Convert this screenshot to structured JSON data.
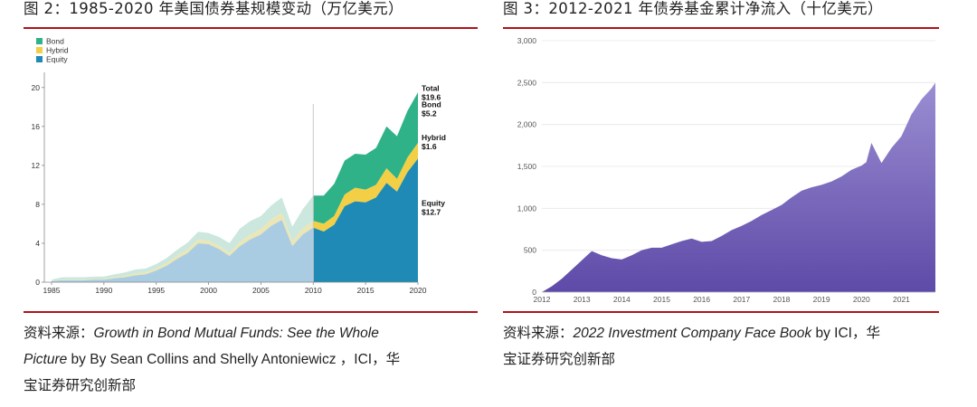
{
  "left": {
    "figure_title": "图 2：1985-2020 年美国债券基规模变动（万亿美元）",
    "source_lines": [
      {
        "prefix": "资料来源：",
        "italic": "Growth in Bond Mutual Funds: See the Whole",
        "rest": ""
      },
      {
        "prefix": "",
        "italic": "Picture",
        "rest": " by By Sean Collins and Shelly Antoniewicz ，ICI，华"
      },
      {
        "prefix": "宝证券研究创新部",
        "italic": "",
        "rest": ""
      }
    ],
    "colors": {
      "bond": "#2fb288",
      "hybrid": "#f2cf45",
      "equity": "#1f8ab6",
      "bond_pre": "#cce7dd",
      "hybrid_pre": "#ece6b4",
      "equity_pre": "#a9cce3"
    },
    "end_labels": [
      {
        "name": "Total",
        "value": "$19.6"
      },
      {
        "name": "Bond",
        "value": "$5.2"
      },
      {
        "name": "Hybrid",
        "value": "$1.6"
      },
      {
        "name": "Equity",
        "value": "$12.7"
      }
    ]
  },
  "right": {
    "figure_title": "图 3：2012-2021 年债券基金累计净流入（十亿美元）",
    "source_lines": [
      {
        "prefix": "资料来源：",
        "italic": "2022 Investment Company Face Book",
        "rest": " by ICI，华"
      },
      {
        "prefix": "宝证券研究创新部",
        "italic": "",
        "rest": ""
      }
    ],
    "colors": {
      "top": "#9b8ed2",
      "bottom": "#5e4aa8"
    }
  },
  "chart_data": [
    {
      "type": "area",
      "stacked": true,
      "title": "",
      "xlabel": "",
      "ylabel": "",
      "x": [
        1985,
        1986,
        1987,
        1988,
        1989,
        1990,
        1991,
        1992,
        1993,
        1994,
        1995,
        1996,
        1997,
        1998,
        1999,
        2000,
        2001,
        2002,
        2003,
        2004,
        2005,
        2006,
        2007,
        2008,
        2009,
        2010,
        2011,
        2012,
        2013,
        2014,
        2015,
        2016,
        2017,
        2018,
        2019,
        2020
      ],
      "xticks": [
        1985,
        1990,
        1995,
        2000,
        2005,
        2010,
        2015,
        2020
      ],
      "yticks": [
        0,
        4,
        8,
        12,
        16,
        20
      ],
      "ylim": [
        0,
        21
      ],
      "xlim": [
        1985,
        2020
      ],
      "divider_x": 2010,
      "legend": [
        "Bond",
        "Hybrid",
        "Equity"
      ],
      "legend_position": "top-left",
      "series": [
        {
          "name": "Equity",
          "values": [
            0.1,
            0.2,
            0.2,
            0.2,
            0.25,
            0.25,
            0.4,
            0.5,
            0.7,
            0.8,
            1.2,
            1.7,
            2.4,
            3.0,
            4.0,
            3.9,
            3.4,
            2.7,
            3.7,
            4.4,
            4.9,
            5.8,
            6.4,
            3.7,
            4.9,
            5.6,
            5.2,
            5.9,
            7.8,
            8.3,
            8.2,
            8.7,
            10.2,
            9.3,
            11.3,
            12.7
          ]
        },
        {
          "name": "Hybrid",
          "values": [
            0.02,
            0.05,
            0.06,
            0.06,
            0.07,
            0.08,
            0.1,
            0.15,
            0.2,
            0.2,
            0.22,
            0.28,
            0.33,
            0.36,
            0.38,
            0.35,
            0.34,
            0.32,
            0.42,
            0.5,
            0.55,
            0.65,
            0.7,
            0.5,
            0.6,
            0.7,
            0.8,
            0.9,
            1.2,
            1.4,
            1.3,
            1.3,
            1.5,
            1.3,
            1.5,
            1.6
          ]
        },
        {
          "name": "Bond",
          "values": [
            0.15,
            0.25,
            0.25,
            0.25,
            0.25,
            0.25,
            0.3,
            0.35,
            0.4,
            0.4,
            0.45,
            0.5,
            0.6,
            0.7,
            0.8,
            0.8,
            0.9,
            1.0,
            1.4,
            1.4,
            1.35,
            1.45,
            1.6,
            1.5,
            2.0,
            2.6,
            2.9,
            3.3,
            3.5,
            3.5,
            3.6,
            3.8,
            4.3,
            4.4,
            4.8,
            5.2
          ]
        }
      ]
    },
    {
      "type": "area",
      "title": "",
      "xlabel": "",
      "ylabel": "",
      "x": [
        2012.0,
        2012.25,
        2012.5,
        2012.75,
        2013.0,
        2013.25,
        2013.5,
        2013.75,
        2014.0,
        2014.25,
        2014.5,
        2014.75,
        2015.0,
        2015.25,
        2015.5,
        2015.75,
        2016.0,
        2016.25,
        2016.5,
        2016.75,
        2017.0,
        2017.25,
        2017.5,
        2017.75,
        2018.0,
        2018.25,
        2018.5,
        2018.75,
        2019.0,
        2019.25,
        2019.5,
        2019.75,
        2020.0,
        2020.12,
        2020.25,
        2020.5,
        2020.75,
        2021.0,
        2021.25,
        2021.5,
        2021.75,
        2021.85
      ],
      "values": [
        0,
        70,
        160,
        270,
        380,
        490,
        440,
        405,
        390,
        440,
        500,
        530,
        530,
        570,
        610,
        640,
        600,
        610,
        670,
        740,
        790,
        850,
        920,
        980,
        1040,
        1130,
        1210,
        1250,
        1280,
        1320,
        1380,
        1460,
        1510,
        1550,
        1780,
        1540,
        1720,
        1860,
        2120,
        2300,
        2430,
        2500
      ],
      "xticks": [
        2012,
        2013,
        2014,
        2015,
        2016,
        2017,
        2018,
        2019,
        2020,
        2021
      ],
      "yticks": [
        "0",
        "500",
        "1,000",
        "1,500",
        "2,000",
        "2,500",
        "3,000"
      ],
      "ylim": [
        0,
        3000
      ],
      "xlim": [
        2012,
        2021.85
      ]
    }
  ]
}
